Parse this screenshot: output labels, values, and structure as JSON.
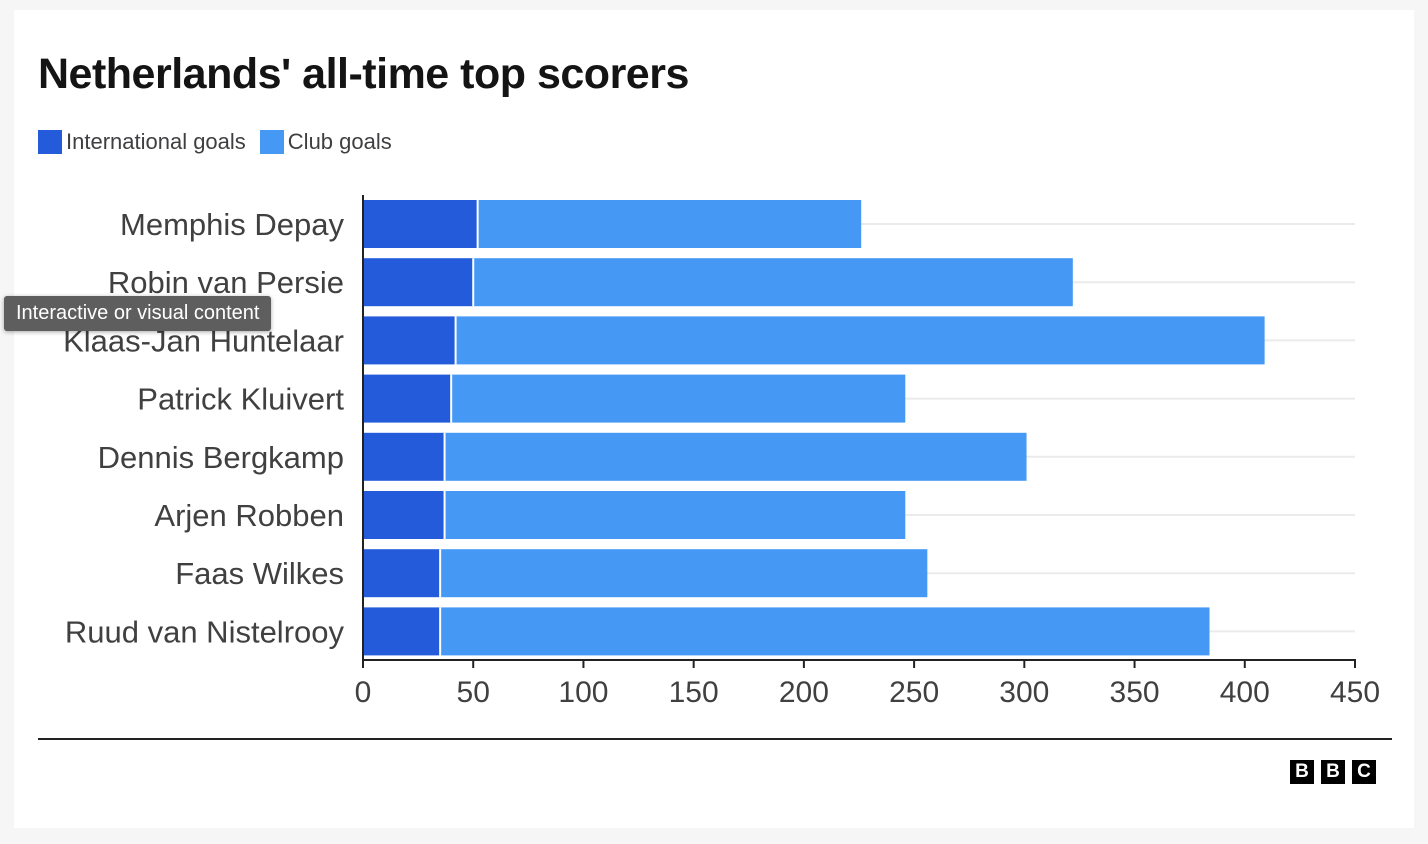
{
  "title": "Netherlands' all-time top scorers",
  "legend": {
    "items": [
      {
        "label": "International goals",
        "color": "#245bdb"
      },
      {
        "label": "Club goals",
        "color": "#4599f4"
      }
    ]
  },
  "tooltip": "Interactive or visual content",
  "logo": {
    "letters": [
      "B",
      "B",
      "C"
    ]
  },
  "chart_data": {
    "type": "bar",
    "orientation": "horizontal",
    "stacked": true,
    "title": "Netherlands' all-time top scorers",
    "categories": [
      "Memphis Depay",
      "Robin van Persie",
      "Klaas-Jan Huntelaar",
      "Patrick Kluivert",
      "Dennis Bergkamp",
      "Arjen Robben",
      "Faas Wilkes",
      "Ruud van Nistelrooy"
    ],
    "series": [
      {
        "name": "International goals",
        "color": "#245bdb",
        "values": [
          52,
          50,
          42,
          40,
          37,
          37,
          35,
          35
        ]
      },
      {
        "name": "Club goals",
        "color": "#4599f4",
        "values": [
          174,
          272,
          367,
          206,
          264,
          209,
          221,
          349
        ]
      }
    ],
    "xlim": [
      0,
      450
    ],
    "xticks": [
      0,
      50,
      100,
      150,
      200,
      250,
      300,
      350,
      400,
      450
    ],
    "xlabel": "",
    "ylabel": "",
    "grid": true,
    "legend_position": "top-left"
  }
}
